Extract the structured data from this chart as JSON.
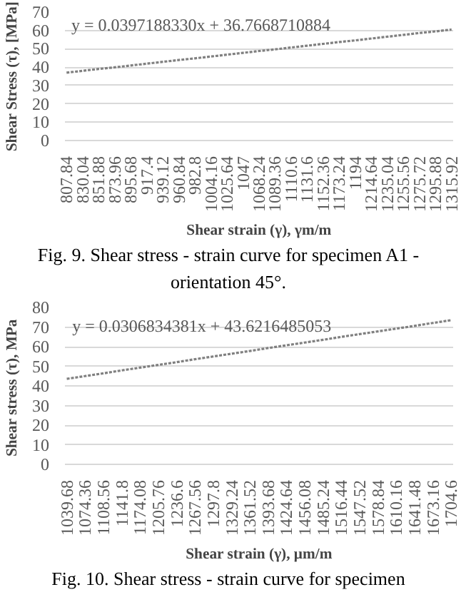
{
  "chart_data": [
    {
      "type": "line",
      "xlabel": "Shear strain (γ), γm/m",
      "ylabel": "Shear Stress (τ), [MPa]",
      "categories": [
        "807.84",
        "830.04",
        "851.88",
        "873.96",
        "895.68",
        "917.4",
        "939.12",
        "960.84",
        "982.8",
        "1004.16",
        "1025.64",
        "1047",
        "1068.24",
        "1089.36",
        "1110.6",
        "1131.6",
        "1152.36",
        "1173.24",
        "1194",
        "1214.64",
        "1235.04",
        "1255.56",
        "1275.72",
        "1295.88",
        "1315.92"
      ],
      "series": [
        {
          "color": "#808080",
          "values": [
            37.0,
            38.0,
            39.0,
            39.9,
            40.9,
            41.9,
            42.9,
            43.9,
            44.8,
            45.8,
            46.8,
            47.8,
            48.8,
            49.7,
            50.7,
            51.7,
            52.7,
            53.7,
            54.6,
            55.6,
            56.6,
            57.6,
            58.6,
            59.5,
            60.5
          ]
        }
      ],
      "ylim": [
        0,
        70
      ],
      "yticks": [
        0,
        10,
        20,
        30,
        40,
        50,
        60,
        70
      ],
      "grid": "y",
      "line_style": "dotted",
      "annotations": [
        "y = 0.0397188330x + 36.7668710884",
        "Fig. 9. Shear stress - strain curve for specimen A1 - orientation 45°."
      ]
    },
    {
      "type": "line",
      "xlabel": "Shear strain (γ), μm/m",
      "ylabel": "Shear stress (τ),  MPa",
      "categories": [
        "1039.68",
        "1074.36",
        "1108.56",
        "1141.8",
        "1174.08",
        "1205.76",
        "1236.6",
        "1267.56",
        "1297.8",
        "1329.24",
        "1361.52",
        "1393.68",
        "1424.64",
        "1456.08",
        "1485.24",
        "1516.44",
        "1547.52",
        "1578.84",
        "1610.16",
        "1641.48",
        "1673.16",
        "1704.6"
      ],
      "series": [
        {
          "color": "#808080",
          "values": [
            43.6,
            45.0,
            46.4,
            47.9,
            49.3,
            50.7,
            52.1,
            53.6,
            55.0,
            56.4,
            57.8,
            59.3,
            60.7,
            62.1,
            63.5,
            65.0,
            66.4,
            67.8,
            69.2,
            70.6,
            72.1,
            73.5
          ]
        }
      ],
      "ylim": [
        0,
        80
      ],
      "yticks": [
        0,
        10,
        20,
        30,
        40,
        50,
        60,
        70,
        80
      ],
      "grid": "y",
      "line_style": "dotted",
      "annotations": [
        "y = 0.0306834381x + 43.6216485053",
        "Fig. 10. Shear stress - strain curve for specimen"
      ]
    }
  ]
}
